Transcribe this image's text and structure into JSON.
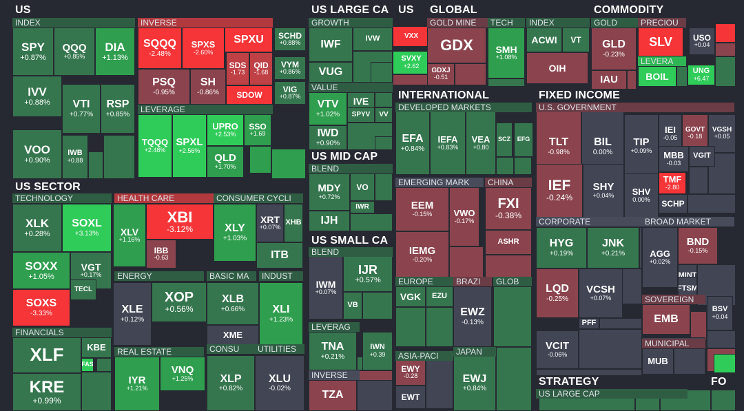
{
  "chart_data": {
    "type": "treemap",
    "sections": [
      "US",
      "GLOBAL",
      "COMMODITY",
      "US SECTOR",
      "US LARGE CA",
      "US MID CAP",
      "US SMALL CA",
      "INTERNATIONAL",
      "FIXED INCOME",
      "STRATEGY",
      "FO"
    ],
    "groups": [
      "INDEX",
      "INVERSE",
      "LEVERAGE",
      "TECHNOLOGY",
      "HEALTH CARE",
      "CONSUMER CYCLI",
      "ENERGY",
      "BASIC MA",
      "INDUST",
      "FINANCIALS",
      "REAL ESTATE",
      "CONSU",
      "UTILITIES",
      "GROWTH",
      "VALUE",
      "BLEND",
      "BLEND",
      "LEVERAG",
      "INVERSE",
      "GOLD MINE",
      "TECH",
      "INDEX",
      "GOLD",
      "PRECIOU",
      "LEVERA",
      "DEVELOPED MARKETS",
      "EMERGING MARK",
      "CHINA",
      "EUROPE",
      "BRAZI",
      "GLOB",
      "ASIA-PACI",
      "JAPAN",
      "U.S. GOVERNMENT",
      "CORPORATE",
      "BROAD MARKET",
      "SOVEREIGN",
      "MUNICIPAL",
      "US LARGE CAP"
    ],
    "tiles": [
      {
        "ticker": "SPY",
        "change": "+0.87%",
        "value": 0.87
      },
      {
        "ticker": "QQQ",
        "change": "+0.85%",
        "value": 0.85
      },
      {
        "ticker": "DIA",
        "change": "+1.13%",
        "value": 1.13
      },
      {
        "ticker": "IVV",
        "change": "+0.88%",
        "value": 0.88
      },
      {
        "ticker": "VTI",
        "change": "+0.77%",
        "value": 0.77
      },
      {
        "ticker": "RSP",
        "change": "+0.85%",
        "value": 0.85
      },
      {
        "ticker": "VOO",
        "change": "+0.90%",
        "value": 0.9
      },
      {
        "ticker": "IWB",
        "change": "+0.88",
        "value": 0.88
      },
      {
        "ticker": "SQQQ",
        "change": "-2.48%",
        "value": -2.48
      },
      {
        "ticker": "SPXS",
        "change": "-2.60%",
        "value": -2.6
      },
      {
        "ticker": "SPXU",
        "change": "",
        "value": -2.6
      },
      {
        "ticker": "PSQ",
        "change": "-0.95%",
        "value": -0.95
      },
      {
        "ticker": "SH",
        "change": "-0.86%",
        "value": -0.86
      },
      {
        "ticker": "SDS",
        "change": "-1.73",
        "value": -1.73
      },
      {
        "ticker": "QID",
        "change": "-1.68",
        "value": -1.68
      },
      {
        "ticker": "SDOW",
        "change": "",
        "value": -3.3
      },
      {
        "ticker": "SCHD",
        "change": "+0.88%",
        "value": 0.88
      },
      {
        "ticker": "VYM",
        "change": "+0.86%",
        "value": 0.86
      },
      {
        "ticker": "VIG",
        "change": "+0.87%",
        "value": 0.87
      },
      {
        "ticker": "TQQQ",
        "change": "+2.48%",
        "value": 2.48
      },
      {
        "ticker": "SPXL",
        "change": "+2.56%",
        "value": 2.56
      },
      {
        "ticker": "UPRO",
        "change": "+2.53%",
        "value": 2.53
      },
      {
        "ticker": "SSO",
        "change": "+1.69",
        "value": 1.69
      },
      {
        "ticker": "QLD",
        "change": "+1.70%",
        "value": 1.7
      },
      {
        "ticker": "XLK",
        "change": "+0.28%",
        "value": 0.28
      },
      {
        "ticker": "SOXL",
        "change": "+3.13%",
        "value": 3.13
      },
      {
        "ticker": "SOXX",
        "change": "+1.05%",
        "value": 1.05
      },
      {
        "ticker": "VGT",
        "change": "+0.17%",
        "value": 0.17
      },
      {
        "ticker": "TECL",
        "change": "",
        "value": 0.5
      },
      {
        "ticker": "SOXS",
        "change": "-3.33%",
        "value": -3.33
      },
      {
        "ticker": "XLV",
        "change": "+1.16%",
        "value": 1.16
      },
      {
        "ticker": "XBI",
        "change": "-3.12%",
        "value": -3.12
      },
      {
        "ticker": "IBB",
        "change": "-0.63",
        "value": -0.63
      },
      {
        "ticker": "XLY",
        "change": "+1.03%",
        "value": 1.03
      },
      {
        "ticker": "XRT",
        "change": "+0.07%",
        "value": 0.07
      },
      {
        "ticker": "XHB",
        "change": "",
        "value": 0.5
      },
      {
        "ticker": "ITB",
        "change": "",
        "value": 0.8
      },
      {
        "ticker": "XLE",
        "change": "+0.12%",
        "value": 0.12
      },
      {
        "ticker": "XOP",
        "change": "+0.56%",
        "value": 0.56
      },
      {
        "ticker": "XLB",
        "change": "+0.66%",
        "value": 0.66
      },
      {
        "ticker": "XME",
        "change": "",
        "value": 0.1
      },
      {
        "ticker": "XLI",
        "change": "+1.23%",
        "value": 1.23
      },
      {
        "ticker": "XLF",
        "change": "",
        "value": 0.9
      },
      {
        "ticker": "KBE",
        "change": "",
        "value": 0.6
      },
      {
        "ticker": "FAS",
        "change": "",
        "value": 2.5
      },
      {
        "ticker": "KRE",
        "change": "+0.99%",
        "value": 0.99
      },
      {
        "ticker": "IYR",
        "change": "+1.21%",
        "value": 1.21
      },
      {
        "ticker": "VNQ",
        "change": "+1.25%",
        "value": 1.25
      },
      {
        "ticker": "XLP",
        "change": "+0.82%",
        "value": 0.82
      },
      {
        "ticker": "XLU",
        "change": "-0.02%",
        "value": -0.02
      },
      {
        "ticker": "IWF",
        "change": "",
        "value": 0.8
      },
      {
        "ticker": "IVW",
        "change": "",
        "value": 0.6
      },
      {
        "ticker": "VUG",
        "change": "",
        "value": 0.8
      },
      {
        "ticker": "VTV",
        "change": "+1.02%",
        "value": 1.02
      },
      {
        "ticker": "IVE",
        "change": "",
        "value": 0.7
      },
      {
        "ticker": "SPYV",
        "change": "",
        "value": 0.9
      },
      {
        "ticker": "VV",
        "change": "",
        "value": 0.8
      },
      {
        "ticker": "IWD",
        "change": "+0.90%",
        "value": 0.9
      },
      {
        "ticker": "MDY",
        "change": "+0.72%",
        "value": 0.72
      },
      {
        "ticker": "VO",
        "change": "",
        "value": 0.7
      },
      {
        "ticker": "IWR",
        "change": "",
        "value": 0.7
      },
      {
        "ticker": "IJH",
        "change": "",
        "value": 0.7
      },
      {
        "ticker": "IWM",
        "change": "+0.07%",
        "value": 0.07
      },
      {
        "ticker": "IJR",
        "change": "+0.57%",
        "value": 0.57
      },
      {
        "ticker": "VB",
        "change": "",
        "value": 0.3
      },
      {
        "ticker": "TNA",
        "change": "+0.21%",
        "value": 0.21
      },
      {
        "ticker": "IWN",
        "change": "+0.39",
        "value": 0.39
      },
      {
        "ticker": "TZA",
        "change": "",
        "value": -0.2
      },
      {
        "ticker": "VXX",
        "change": "",
        "value": -3.5
      },
      {
        "ticker": "SVXY",
        "change": "+2.62",
        "value": 2.62
      },
      {
        "ticker": "GDX",
        "change": "",
        "value": -0.5
      },
      {
        "ticker": "GDXJ",
        "change": "-0.51",
        "value": -0.51
      },
      {
        "ticker": "SMH",
        "change": "+1.08%",
        "value": 1.08
      },
      {
        "ticker": "ACWI",
        "change": "",
        "value": 0.7
      },
      {
        "ticker": "VT",
        "change": "",
        "value": 0.7
      },
      {
        "ticker": "OIH",
        "change": "",
        "value": -0.3
      },
      {
        "ticker": "GLD",
        "change": "-0.23%",
        "value": -0.23
      },
      {
        "ticker": "IAU",
        "change": "",
        "value": -0.2
      },
      {
        "ticker": "SLV",
        "change": "",
        "value": -2.5
      },
      {
        "ticker": "USO",
        "change": "+0.04",
        "value": 0.04
      },
      {
        "ticker": "BOIL",
        "change": "",
        "value": 3.5
      },
      {
        "ticker": "UNG",
        "change": "+6.47",
        "value": 6.47
      },
      {
        "ticker": "EFA",
        "change": "+0.84%",
        "value": 0.84
      },
      {
        "ticker": "IEFA",
        "change": "+0.83%",
        "value": 0.83
      },
      {
        "ticker": "VEA",
        "change": "+0.80",
        "value": 0.8
      },
      {
        "ticker": "SCZ",
        "change": "",
        "value": 0.5
      },
      {
        "ticker": "EFG",
        "change": "",
        "value": 0.5
      },
      {
        "ticker": "EEM",
        "change": "-0.15%",
        "value": -0.15
      },
      {
        "ticker": "VWO",
        "change": "-0.17%",
        "value": -0.17
      },
      {
        "ticker": "IEMG",
        "change": "-0.20%",
        "value": -0.2
      },
      {
        "ticker": "FXI",
        "change": "-0.38%",
        "value": -0.38
      },
      {
        "ticker": "ASHR",
        "change": "",
        "value": -0.6
      },
      {
        "ticker": "VGK",
        "change": "",
        "value": 0.5
      },
      {
        "ticker": "EZU",
        "change": "",
        "value": 0.5
      },
      {
        "ticker": "EWZ",
        "change": "-0.13%",
        "value": -0.13
      },
      {
        "ticker": "EWY",
        "change": "-0.28",
        "value": -0.28
      },
      {
        "ticker": "EWT",
        "change": "",
        "value": -0.1
      },
      {
        "ticker": "EWJ",
        "change": "+0.84%",
        "value": 0.84
      },
      {
        "ticker": "TLT",
        "change": "-0.98%",
        "value": -0.98
      },
      {
        "ticker": "BIL",
        "change": "0.00%",
        "value": 0.0
      },
      {
        "ticker": "TIP",
        "change": "+0.09%",
        "value": 0.09
      },
      {
        "ticker": "IEI",
        "change": "-0.05",
        "value": -0.05
      },
      {
        "ticker": "GOVT",
        "change": "-0.18",
        "value": -0.18
      },
      {
        "ticker": "VGSH",
        "change": "+0.05",
        "value": 0.05
      },
      {
        "ticker": "MBB",
        "change": "-0.03",
        "value": -0.03
      },
      {
        "ticker": "VGIT",
        "change": "",
        "value": -0.05
      },
      {
        "ticker": "IEF",
        "change": "-0.24%",
        "value": -0.24
      },
      {
        "ticker": "SHY",
        "change": "+0.04%",
        "value": 0.04
      },
      {
        "ticker": "SHV",
        "change": "0.00%",
        "value": 0.0
      },
      {
        "ticker": "TMF",
        "change": "-2.80",
        "value": -2.8
      },
      {
        "ticker": "SCHP",
        "change": "",
        "value": -0.05
      },
      {
        "ticker": "HYG",
        "change": "+0.19%",
        "value": 0.19
      },
      {
        "ticker": "JNK",
        "change": "+0.21%",
        "value": 0.21
      },
      {
        "ticker": "LQD",
        "change": "-0.25%",
        "value": -0.25
      },
      {
        "ticker": "VCSH",
        "change": "+0.07%",
        "value": 0.07
      },
      {
        "ticker": "PFF",
        "change": "",
        "value": 0.1
      },
      {
        "ticker": "VCIT",
        "change": "-0.06%",
        "value": -0.06
      },
      {
        "ticker": "AGG",
        "change": "+0.02%",
        "value": 0.02
      },
      {
        "ticker": "BND",
        "change": "-0.15%",
        "value": -0.15
      },
      {
        "ticker": "MINT",
        "change": "",
        "value": 0.01
      },
      {
        "ticker": "FTSM",
        "change": "",
        "value": 0.01
      },
      {
        "ticker": "EMB",
        "change": "",
        "value": -0.2
      },
      {
        "ticker": "BSV",
        "change": "+0.04",
        "value": 0.04
      },
      {
        "ticker": "MUB",
        "change": "",
        "value": -0.1
      }
    ]
  },
  "colors": {
    "background": "#262931",
    "neutral": "#414554",
    "green_weak": "#35764e",
    "green_mid": "#2f9e4f",
    "green_strong": "#30cc5a",
    "red_weak": "#8b444e",
    "red_mid": "#bf4045",
    "red_strong": "#f63538"
  }
}
